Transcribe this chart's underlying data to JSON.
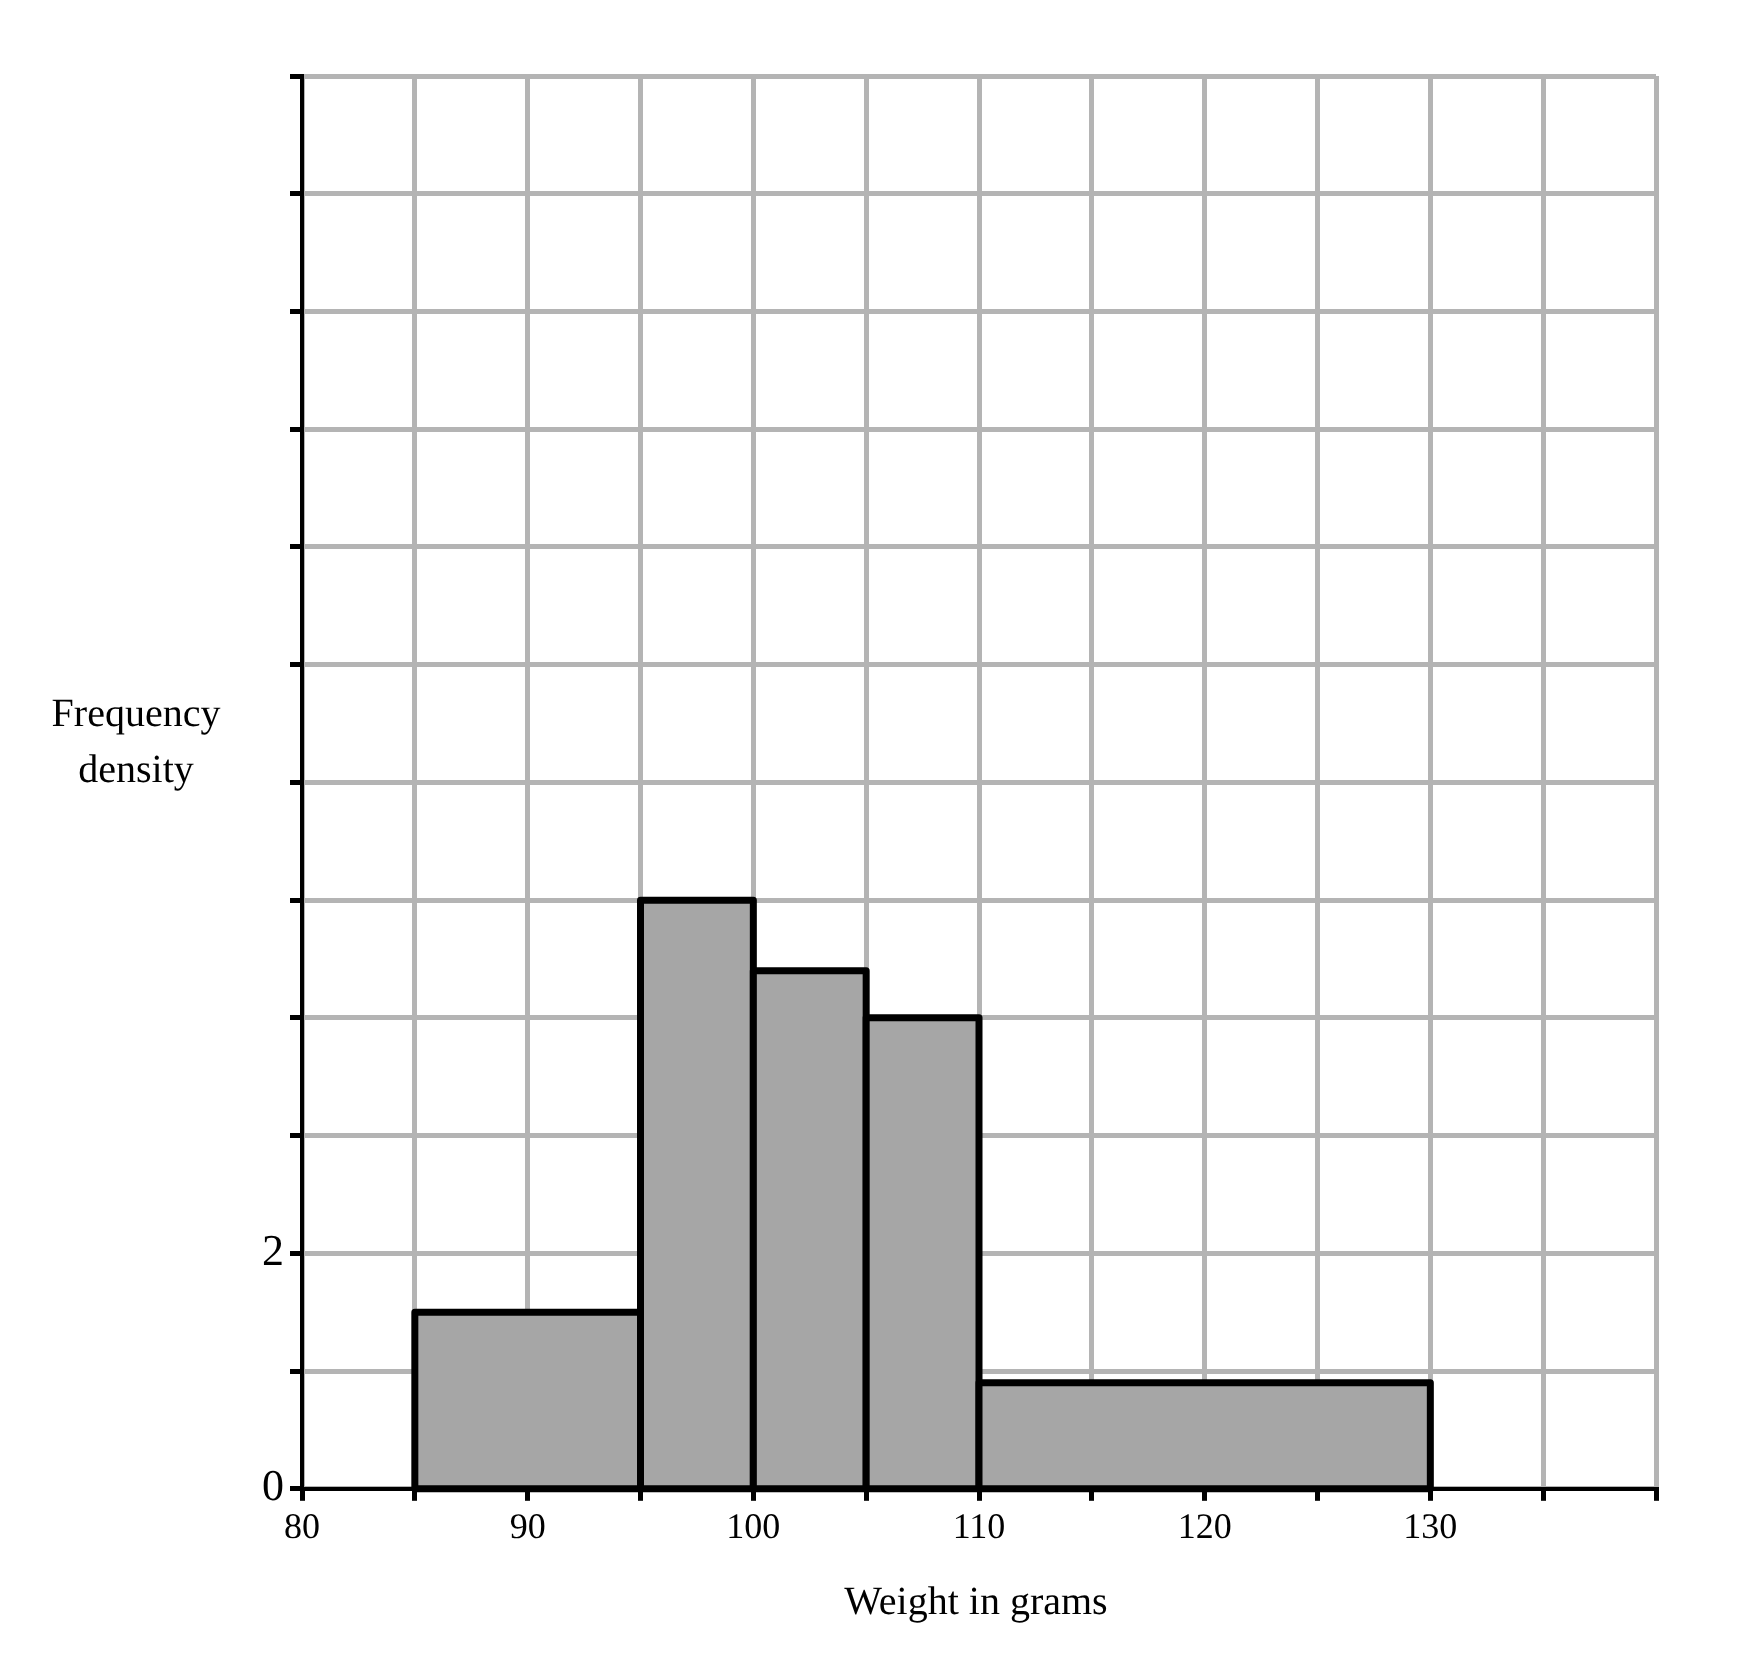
{
  "chart_data": {
    "type": "histogram",
    "xlabel": "Weight in grams",
    "ylabel": "Frequency density",
    "bins": [
      85,
      95,
      100,
      105,
      110,
      130
    ],
    "values": [
      1.5,
      5,
      4.4,
      4,
      0.9
    ],
    "color": "#a6a6a6",
    "xlim": [
      80,
      140
    ],
    "xticks": [
      80,
      {
        "value": 85,
        "label": null
      },
      90,
      {
        "value": 95,
        "label": null
      },
      100,
      {
        "value": 105,
        "label": null
      },
      110,
      {
        "value": 115,
        "label": null
      },
      120,
      {
        "value": 125,
        "label": null
      },
      130,
      {
        "value": 135,
        "label": null
      },
      {
        "value": 140,
        "label": null
      }
    ],
    "ylim": [
      0,
      12
    ],
    "yticks": [
      0,
      {
        "value": 1,
        "label": null
      },
      2,
      {
        "value": 3,
        "label": null
      },
      {
        "value": 4,
        "label": null
      },
      {
        "value": 5,
        "label": null
      },
      {
        "value": 6,
        "label": null
      },
      {
        "value": 7,
        "label": null
      },
      {
        "value": 8,
        "label": null
      },
      {
        "value": 9,
        "label": null
      },
      {
        "value": 10,
        "label": null
      },
      {
        "value": 11,
        "label": null
      },
      {
        "value": 12,
        "label": null
      }
    ],
    "grid": true
  }
}
